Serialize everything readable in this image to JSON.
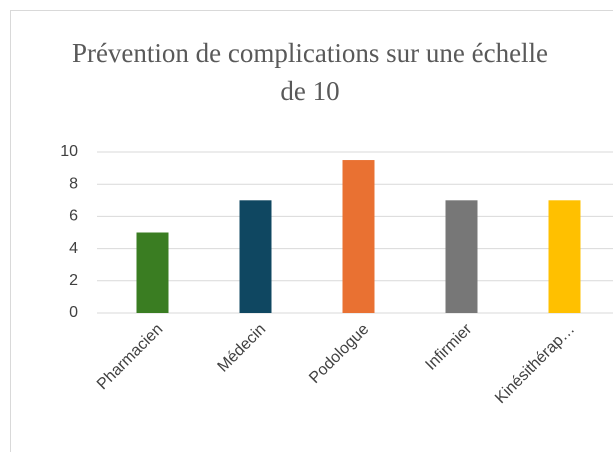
{
  "chart_data": {
    "type": "bar",
    "title": "Prévention de complications sur une échelle de 10",
    "categories": [
      "Pharmacien",
      "Médecin",
      "Podologue",
      "Infirmier",
      "Kinésithérap…"
    ],
    "values": [
      5,
      7,
      9.5,
      7,
      7
    ],
    "colors": [
      "#3a7d22",
      "#0f4761",
      "#e97132",
      "#777777",
      "#ffc000"
    ],
    "ylim": [
      0,
      10
    ],
    "yticks": [
      0,
      2,
      4,
      6,
      8,
      10
    ],
    "grid": true
  }
}
